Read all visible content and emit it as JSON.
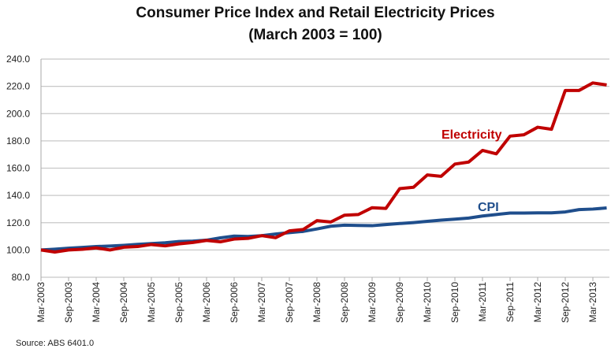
{
  "chart_data": {
    "type": "line",
    "title": "Consumer Price Index and Retail Electricity Prices",
    "subtitle": "(March 2003 = 100)",
    "xlabel": "",
    "ylabel": "",
    "ylim": [
      80,
      240
    ],
    "yticks": [
      "80.0",
      "100.0",
      "120.0",
      "140.0",
      "160.0",
      "180.0",
      "200.0",
      "220.0",
      "240.0"
    ],
    "grid": true,
    "legend": "inline labels",
    "xtick_labels": [
      "Mar-2003",
      "Sep-2003",
      "Mar-2004",
      "Sep-2004",
      "Mar-2005",
      "Sep-2005",
      "Mar-2006",
      "Sep-2006",
      "Mar-2007",
      "Sep-2007",
      "Mar-2008",
      "Sep-2008",
      "Mar-2009",
      "Sep-2009",
      "Mar-2010",
      "Sep-2010",
      "Mar-2011",
      "Sep-2011",
      "Mar-2012",
      "Sep-2012",
      "Mar-2013"
    ],
    "x": [
      "Mar-2003",
      "Jun-2003",
      "Sep-2003",
      "Dec-2003",
      "Mar-2004",
      "Jun-2004",
      "Sep-2004",
      "Dec-2004",
      "Mar-2005",
      "Jun-2005",
      "Sep-2005",
      "Dec-2005",
      "Mar-2006",
      "Jun-2006",
      "Sep-2006",
      "Dec-2006",
      "Mar-2007",
      "Jun-2007",
      "Sep-2007",
      "Dec-2007",
      "Mar-2008",
      "Jun-2008",
      "Sep-2008",
      "Dec-2008",
      "Mar-2009",
      "Jun-2009",
      "Sep-2009",
      "Dec-2009",
      "Mar-2010",
      "Jun-2010",
      "Sep-2010",
      "Dec-2010",
      "Mar-2011",
      "Jun-2011",
      "Sep-2011",
      "Dec-2011",
      "Mar-2012",
      "Jun-2012",
      "Sep-2012",
      "Dec-2012",
      "Mar-2013",
      "Jun-2013"
    ],
    "series": [
      {
        "name": "Electricity",
        "color": "#c00000",
        "values": [
          100,
          98.5,
          100,
          100.5,
          101.5,
          100,
          102,
          102.5,
          104,
          103,
          104.5,
          105.5,
          107,
          106,
          108,
          108.5,
          110.5,
          109,
          114,
          115,
          121.5,
          120.5,
          125.5,
          126,
          131,
          130.5,
          145,
          146,
          155,
          154,
          163,
          164.5,
          173,
          170.5,
          183.5,
          184.5,
          190,
          188.5,
          217,
          217,
          222.5,
          221
        ]
      },
      {
        "name": "CPI",
        "color": "#1f4e8c",
        "values": [
          100,
          100.6,
          101.3,
          101.9,
          102.5,
          102.9,
          103.4,
          104.1,
          104.7,
          105.3,
          106.2,
          106.5,
          107.2,
          108.9,
          110.2,
          109.9,
          110.5,
          111.7,
          112.7,
          113.6,
          115.4,
          117.4,
          118.2,
          118.0,
          117.8,
          118.6,
          119.4,
          120.1,
          121.0,
          121.9,
          122.6,
          123.4,
          124.9,
          126.0,
          127.1,
          127.1,
          127.2,
          127.2,
          127.9,
          129.6,
          130.0,
          130.8
        ]
      }
    ]
  },
  "source": "Source: ABS 6401.0"
}
